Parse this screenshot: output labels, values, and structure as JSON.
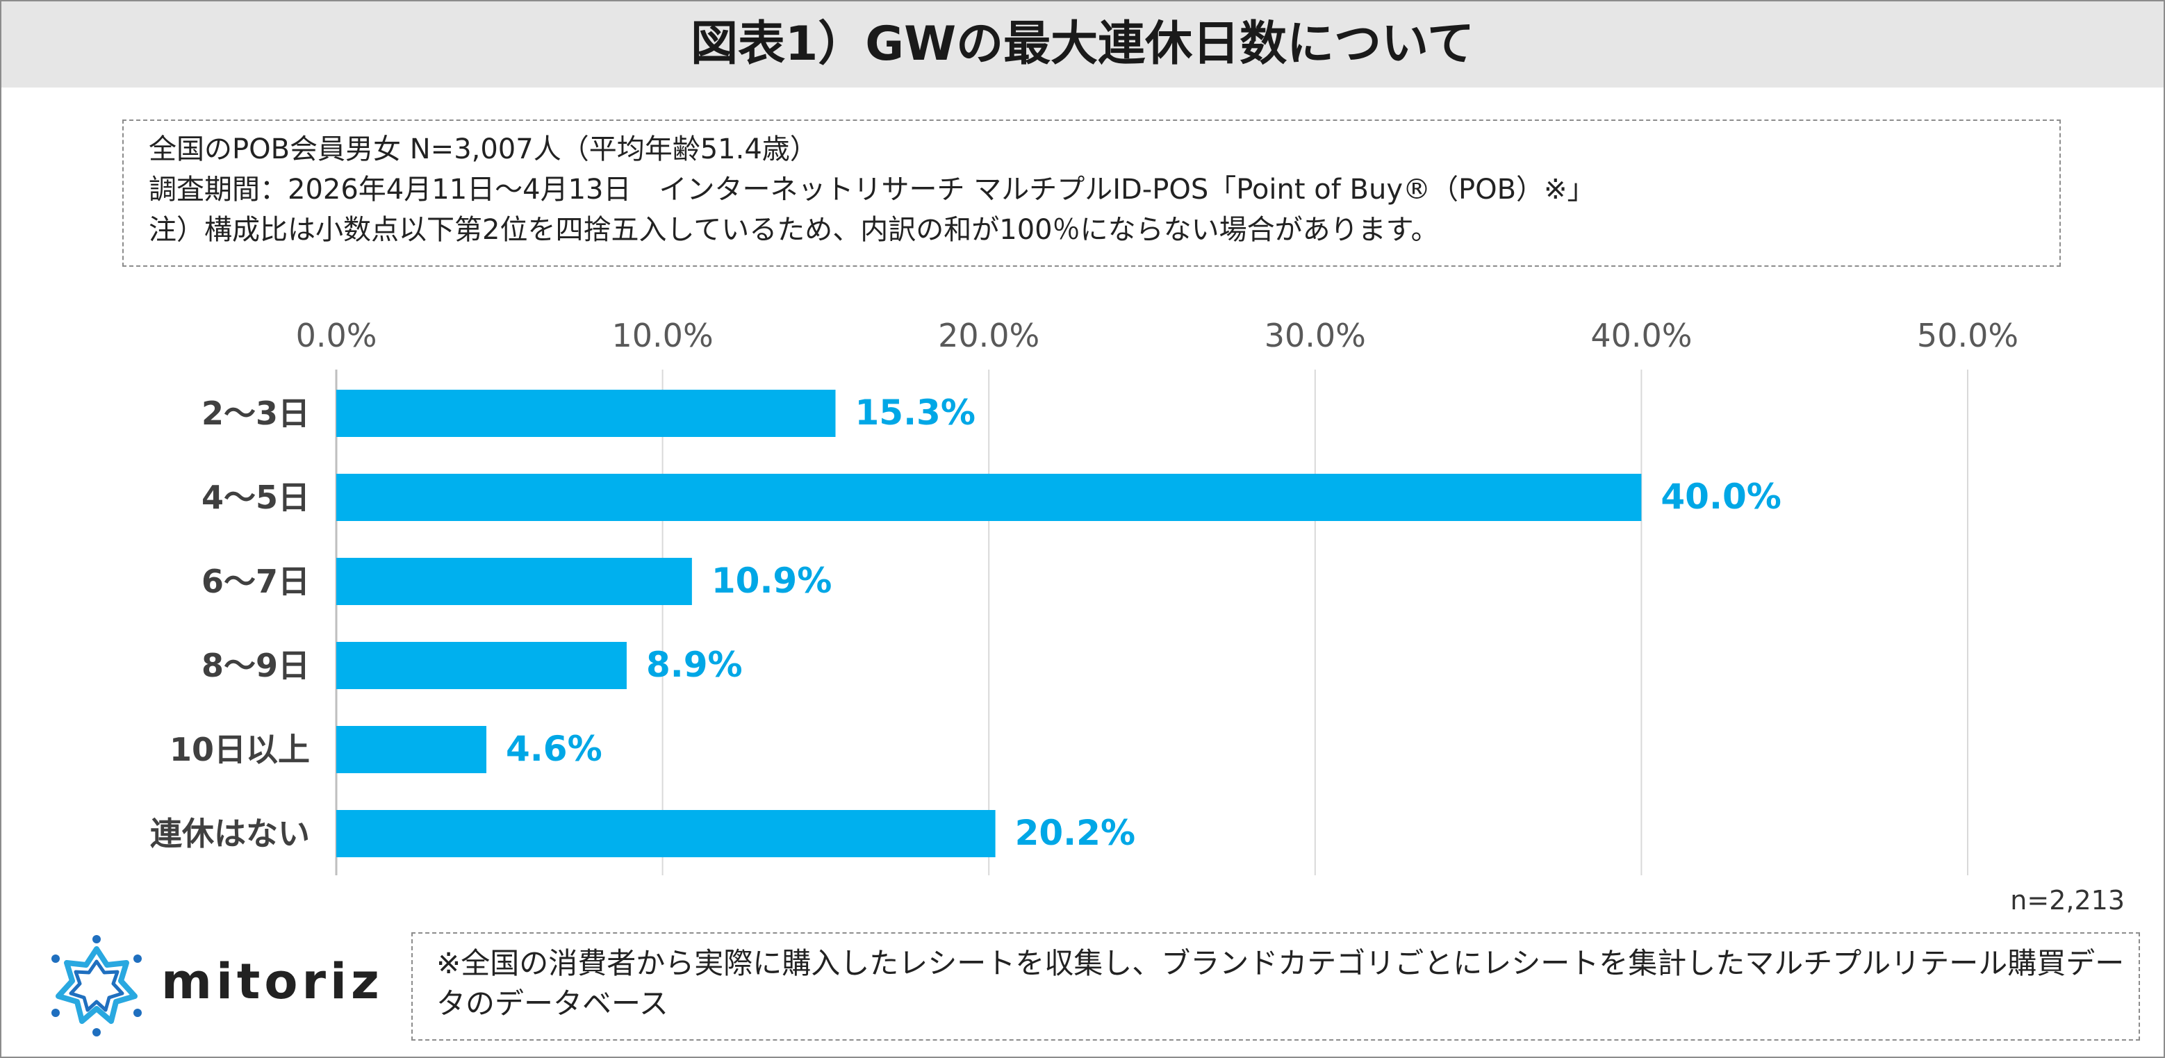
{
  "title": "図表1）GWの最大連休日数について",
  "info": {
    "lines": [
      "全国のPOB会員男女 N=3,007人（平均年齢51.4歳）",
      "調査期間：2026年4月11日～4月13日　インターネットリサーチ マルチプルID-POS「Point of Buy®（POB）※」",
      "注）構成比は小数点以下第2位を四捨五入しているため、内訳の和が100％にならない場合があります。"
    ]
  },
  "chart_data": {
    "type": "bar",
    "orientation": "horizontal",
    "categories": [
      "2～3日",
      "4～5日",
      "6～7日",
      "8～9日",
      "10日以上",
      "連休はない"
    ],
    "values": [
      15.3,
      40.0,
      10.9,
      8.9,
      4.6,
      20.2
    ],
    "value_labels": [
      "15.3%",
      "40.0%",
      "10.9%",
      "8.9%",
      "4.6%",
      "20.2%"
    ],
    "xlim": [
      0,
      50
    ],
    "ticks": [
      0,
      10,
      20,
      30,
      40,
      50
    ],
    "tick_labels": [
      "0.0%",
      "10.0%",
      "20.0%",
      "30.0%",
      "40.0%",
      "50.0%"
    ],
    "axis_position": "top",
    "grid": true,
    "bar_color": "#00b0ee",
    "label_color": "#00a7e6"
  },
  "sample_size": "n=2,213",
  "logo": {
    "name": "mitoriz-logo",
    "text": "mitoriz"
  },
  "footnote": "※全国の消費者から実際に購入したレシートを収集し、ブランドカテゴリごとにレシートを集計したマルチプルリテール購買データのデータベース"
}
